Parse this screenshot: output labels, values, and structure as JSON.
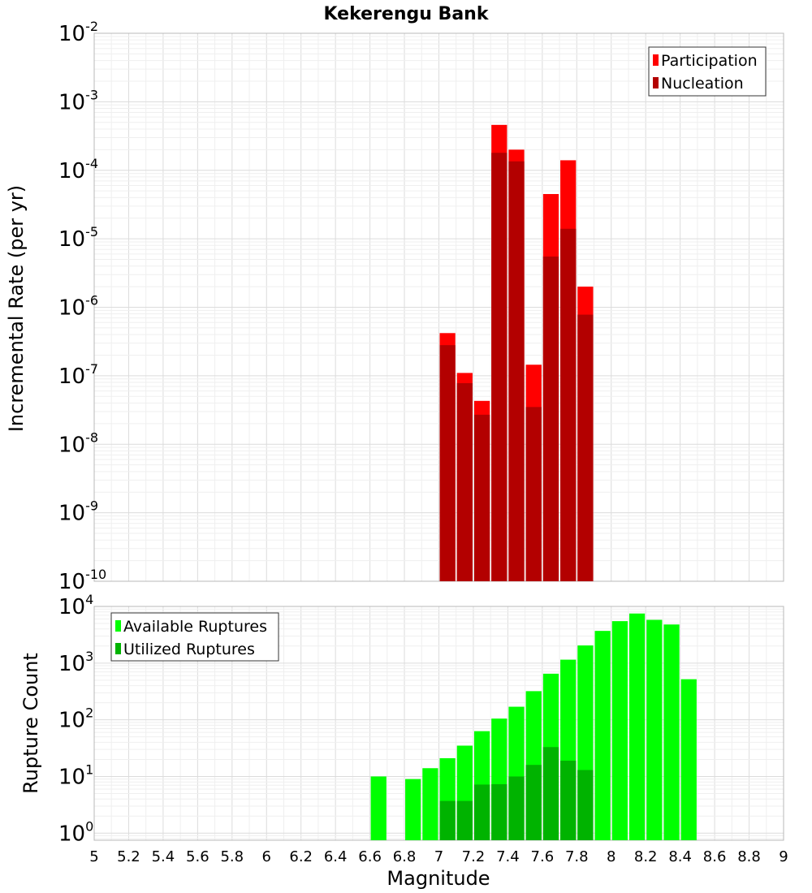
{
  "colors": {
    "participation": "#ff0000",
    "nucleation": "#b30000",
    "available": "#00ff00",
    "utilized": "#00b300"
  },
  "chart_data": [
    {
      "id": "rates",
      "type": "bar",
      "title": "Kekerengu Bank",
      "xlabel": "",
      "ylabel": "Incremental Rate (per yr)",
      "yscale": "log",
      "ylim": [
        1e-10,
        0.01
      ],
      "xlim": [
        5,
        9
      ],
      "grid": true,
      "legend": "top-right",
      "series": [
        {
          "name": "Participation",
          "color": "participation",
          "points": [
            {
              "x": 7.05,
              "y": 4.2e-07
            },
            {
              "x": 7.15,
              "y": 1.1e-07
            },
            {
              "x": 7.25,
              "y": 4.3e-08
            },
            {
              "x": 7.35,
              "y": 0.00046
            },
            {
              "x": 7.45,
              "y": 0.0002
            },
            {
              "x": 7.55,
              "y": 1.45e-07
            },
            {
              "x": 7.65,
              "y": 4.5e-05
            },
            {
              "x": 7.75,
              "y": 0.00014
            },
            {
              "x": 7.85,
              "y": 2e-06
            }
          ]
        },
        {
          "name": "Nucleation",
          "color": "nucleation",
          "points": [
            {
              "x": 7.05,
              "y": 2.8e-07
            },
            {
              "x": 7.15,
              "y": 7.8e-08
            },
            {
              "x": 7.25,
              "y": 2.7e-08
            },
            {
              "x": 7.35,
              "y": 0.00018
            },
            {
              "x": 7.45,
              "y": 0.000135
            },
            {
              "x": 7.55,
              "y": 3.5e-08
            },
            {
              "x": 7.65,
              "y": 5.5e-06
            },
            {
              "x": 7.75,
              "y": 1.4e-05
            },
            {
              "x": 7.85,
              "y": 7.8e-07
            }
          ]
        }
      ]
    },
    {
      "id": "counts",
      "type": "bar",
      "title": "",
      "xlabel": "Magnitude",
      "ylabel": "Rupture Count",
      "yscale": "log",
      "ylim": [
        0.75,
        10000
      ],
      "xlim": [
        5,
        9
      ],
      "xticks": [
        "5",
        "5.2",
        "5.4",
        "5.6",
        "5.8",
        "6",
        "6.2",
        "6.4",
        "6.6",
        "6.8",
        "7",
        "7.2",
        "7.4",
        "7.6",
        "7.8",
        "8",
        "8.2",
        "8.4",
        "8.6",
        "8.8",
        "9"
      ],
      "grid": true,
      "legend": "top-left",
      "series": [
        {
          "name": "Available Ruptures",
          "color": "available",
          "points": [
            {
              "x": 6.65,
              "y": 10
            },
            {
              "x": 6.85,
              "y": 9
            },
            {
              "x": 6.95,
              "y": 14
            },
            {
              "x": 7.05,
              "y": 21
            },
            {
              "x": 7.15,
              "y": 35
            },
            {
              "x": 7.25,
              "y": 63
            },
            {
              "x": 7.35,
              "y": 105
            },
            {
              "x": 7.45,
              "y": 170
            },
            {
              "x": 7.55,
              "y": 320
            },
            {
              "x": 7.65,
              "y": 650
            },
            {
              "x": 7.75,
              "y": 1150
            },
            {
              "x": 7.85,
              "y": 2050
            },
            {
              "x": 7.95,
              "y": 3700
            },
            {
              "x": 8.05,
              "y": 5500
            },
            {
              "x": 8.15,
              "y": 7500
            },
            {
              "x": 8.25,
              "y": 5800
            },
            {
              "x": 8.35,
              "y": 4800
            },
            {
              "x": 8.45,
              "y": 520
            }
          ]
        },
        {
          "name": "Utilized Ruptures",
          "color": "utilized",
          "points": [
            {
              "x": 7.05,
              "y": 3.7
            },
            {
              "x": 7.15,
              "y": 3.7
            },
            {
              "x": 7.25,
              "y": 7.2
            },
            {
              "x": 7.35,
              "y": 7.3
            },
            {
              "x": 7.45,
              "y": 10
            },
            {
              "x": 7.55,
              "y": 16
            },
            {
              "x": 7.65,
              "y": 33
            },
            {
              "x": 7.75,
              "y": 19
            },
            {
              "x": 7.85,
              "y": 13
            }
          ]
        }
      ]
    }
  ]
}
